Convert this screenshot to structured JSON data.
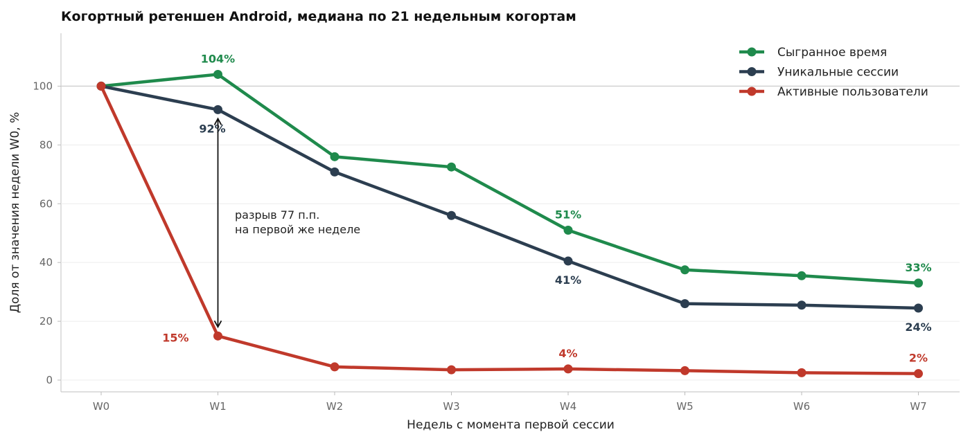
{
  "chart_data": {
    "type": "line",
    "title": "Когортный ретеншен Android, медиана по 21 недельным когортам",
    "xlabel": "Недель с момента первой сессии",
    "ylabel": "Доля от значения недели W0, %",
    "categories": [
      "W0",
      "W1",
      "W2",
      "W3",
      "W4",
      "W5",
      "W6",
      "W7"
    ],
    "ylim": [
      -4,
      118
    ],
    "yticks": [
      0,
      20,
      40,
      60,
      80,
      100
    ],
    "grid": "horizontal",
    "legend_position": "top-right",
    "series": [
      {
        "name": "Сыгранное время",
        "color": "#1f8a4c",
        "values": [
          100,
          104,
          76,
          72.5,
          51,
          37.5,
          35.5,
          33
        ],
        "labels": [
          {
            "index": 1,
            "text": "104%",
            "pos": "above"
          },
          {
            "index": 4,
            "text": "51%",
            "pos": "above"
          },
          {
            "index": 7,
            "text": "33%",
            "pos": "above"
          }
        ]
      },
      {
        "name": "Уникальные сессии",
        "color": "#2c3e50",
        "values": [
          100,
          92,
          70.8,
          56,
          40.5,
          26,
          25.5,
          24.5
        ],
        "labels": [
          {
            "index": 1,
            "text": "92%",
            "pos": "below-left"
          },
          {
            "index": 4,
            "text": "41%",
            "pos": "below"
          },
          {
            "index": 7,
            "text": "24%",
            "pos": "below"
          }
        ]
      },
      {
        "name": "Активные пользователи",
        "color": "#c0392b",
        "values": [
          100,
          15,
          4.5,
          3.5,
          3.8,
          3.2,
          2.5,
          2.2
        ],
        "labels": [
          {
            "index": 1,
            "text": "15%",
            "pos": "left"
          },
          {
            "index": 4,
            "text": "4%",
            "pos": "above"
          },
          {
            "index": 7,
            "text": "2%",
            "pos": "above"
          }
        ]
      }
    ],
    "annotation": {
      "line1": "разрыв 77 п.п.",
      "line2": "на первой же неделе",
      "x_index": 1,
      "y_from": 15,
      "y_to": 92
    },
    "reference_line": 100
  }
}
